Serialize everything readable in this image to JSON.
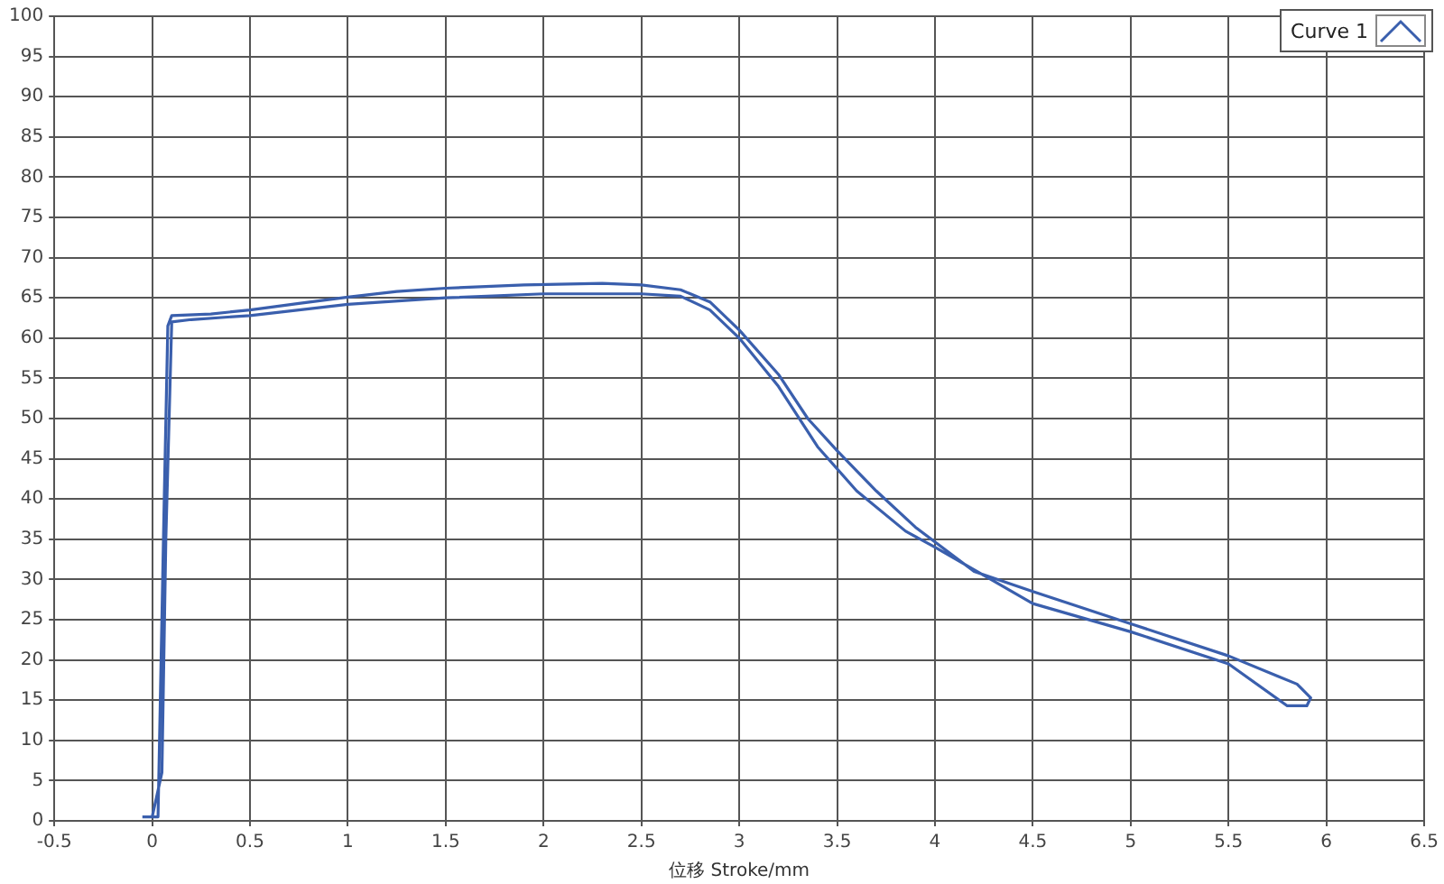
{
  "chart_data": {
    "type": "line",
    "xlabel": "位移 Stroke/mm",
    "xlim": [
      -0.5,
      6.5
    ],
    "xticks": [
      -0.5,
      0,
      0.5,
      1,
      1.5,
      2,
      2.5,
      3,
      3.5,
      4,
      4.5,
      5,
      5.5,
      6,
      6.5
    ],
    "ylim": [
      0,
      100
    ],
    "yticks": [
      0,
      5,
      10,
      15,
      20,
      25,
      30,
      35,
      40,
      45,
      50,
      55,
      60,
      65,
      70,
      75,
      80,
      85,
      90,
      95,
      100
    ],
    "grid": true,
    "legend": "top right",
    "marker": "none",
    "line_style": "solid",
    "series": [
      {
        "name": "Curve 1",
        "color": "#3a5fad",
        "x": [
          -0.05,
          0.03,
          0.06,
          0.08,
          0.1,
          0.3,
          0.5,
          0.75,
          1,
          1.25,
          1.5,
          1.9,
          2.3,
          2.5,
          2.7,
          2.85,
          3,
          3.2,
          3.35,
          3.5,
          3.7,
          3.9,
          4.2,
          4.5,
          5,
          5.5,
          5.75,
          5.85,
          5.92,
          5.9,
          5.8,
          5.5,
          5,
          4.5,
          4,
          3.85,
          3.6,
          3.4,
          3.2,
          3,
          2.85,
          2.7,
          2.5,
          2,
          1.5,
          1,
          0.5,
          0.2,
          0.1,
          0.07,
          0.05,
          0
        ],
        "values": [
          0.5,
          0.5,
          38,
          61.5,
          62.8,
          63,
          63.5,
          64.3,
          65.1,
          65.8,
          66.2,
          66.6,
          66.8,
          66.6,
          66,
          64.5,
          61,
          55.5,
          50,
          46,
          41,
          36.5,
          31,
          28.5,
          24.5,
          20.5,
          18,
          17,
          15.3,
          14.3,
          14.3,
          19.5,
          23.5,
          27,
          34,
          36,
          41,
          46.5,
          54,
          60,
          63.5,
          65.2,
          65.5,
          65.5,
          65,
          64.2,
          62.8,
          62.3,
          62,
          35,
          6,
          0.5
        ]
      }
    ]
  }
}
